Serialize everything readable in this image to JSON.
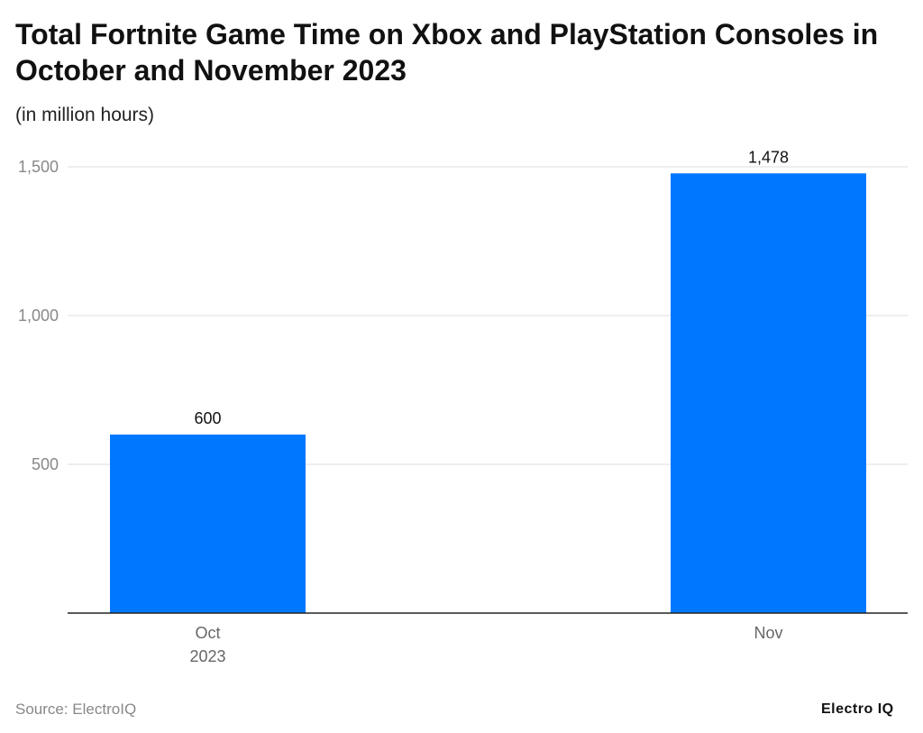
{
  "title": "Total Fortnite Game Time on Xbox and PlayStation Consoles in October and November 2023",
  "subtitle": "(in million hours)",
  "source": "Source: ElectroIQ",
  "logo": "Electro IQ",
  "chart_data": {
    "type": "bar",
    "categories": [
      [
        "Oct",
        "2023"
      ],
      [
        "Nov"
      ]
    ],
    "values": [
      600,
      1478
    ],
    "data_labels": [
      "600",
      "1,478"
    ],
    "yticks": [
      500,
      1000,
      1500
    ],
    "ytick_labels": [
      "500",
      "1,000",
      "1,500"
    ],
    "ylim": [
      0,
      1500
    ],
    "grid": true,
    "bar_color": "#0077FF",
    "title": "Total Fortnite Game Time on Xbox and PlayStation Consoles in October and November 2023",
    "ylabel": "(in million hours)"
  }
}
